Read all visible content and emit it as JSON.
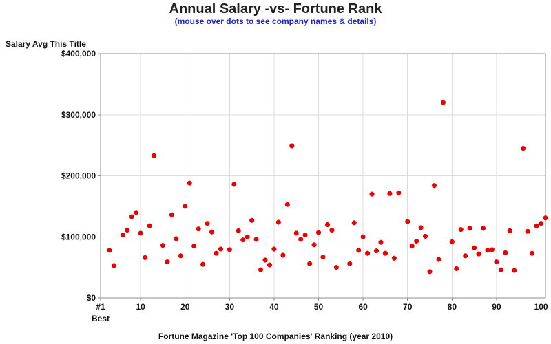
{
  "chart_data": {
    "type": "scatter",
    "title": "Annual Salary -vs- Fortune Rank",
    "subtitle": "(mouse over dots to see company names & details)",
    "xlabel": "Fortune Magazine 'Top 100 Companies' Ranking (year 2010)",
    "ylabel": "Salary Avg This Title",
    "xlim": [
      1,
      101
    ],
    "ylim": [
      0,
      400000
    ],
    "x_ticks": [
      {
        "value": 1,
        "label": "#1"
      },
      {
        "value": 10,
        "label": "10"
      },
      {
        "value": 20,
        "label": "20"
      },
      {
        "value": 30,
        "label": "30"
      },
      {
        "value": 40,
        "label": "40"
      },
      {
        "value": 50,
        "label": "50"
      },
      {
        "value": 60,
        "label": "60"
      },
      {
        "value": 70,
        "label": "70"
      },
      {
        "value": 80,
        "label": "80"
      },
      {
        "value": 90,
        "label": "90"
      },
      {
        "value": 100,
        "label": "100"
      }
    ],
    "x_tick_sublabel": "Best",
    "y_ticks": [
      {
        "value": 0,
        "label": "$0"
      },
      {
        "value": 100000,
        "label": "$100,000"
      },
      {
        "value": 200000,
        "label": "$200,000"
      },
      {
        "value": 300000,
        "label": "$300,000"
      },
      {
        "value": 400000,
        "label": "$400,000"
      }
    ],
    "grid": true,
    "marker_color": "#ee0000",
    "points": [
      {
        "x": 3,
        "y": 78000
      },
      {
        "x": 4,
        "y": 53000
      },
      {
        "x": 6,
        "y": 103000
      },
      {
        "x": 7,
        "y": 111000
      },
      {
        "x": 8,
        "y": 133000
      },
      {
        "x": 9,
        "y": 140000
      },
      {
        "x": 10,
        "y": 106000
      },
      {
        "x": 11,
        "y": 66000
      },
      {
        "x": 12,
        "y": 118000
      },
      {
        "x": 13,
        "y": 233000
      },
      {
        "x": 15,
        "y": 86000
      },
      {
        "x": 16,
        "y": 59000
      },
      {
        "x": 17,
        "y": 136000
      },
      {
        "x": 18,
        "y": 97000
      },
      {
        "x": 19,
        "y": 69000
      },
      {
        "x": 20,
        "y": 150000
      },
      {
        "x": 21,
        "y": 188000
      },
      {
        "x": 22,
        "y": 85000
      },
      {
        "x": 23,
        "y": 113000
      },
      {
        "x": 24,
        "y": 55000
      },
      {
        "x": 25,
        "y": 122000
      },
      {
        "x": 26,
        "y": 108000
      },
      {
        "x": 27,
        "y": 73000
      },
      {
        "x": 28,
        "y": 80000
      },
      {
        "x": 30,
        "y": 79000
      },
      {
        "x": 31,
        "y": 186000
      },
      {
        "x": 32,
        "y": 110000
      },
      {
        "x": 33,
        "y": 95000
      },
      {
        "x": 34,
        "y": 100000
      },
      {
        "x": 35,
        "y": 127000
      },
      {
        "x": 36,
        "y": 96000
      },
      {
        "x": 37,
        "y": 46000
      },
      {
        "x": 38,
        "y": 62000
      },
      {
        "x": 39,
        "y": 54000
      },
      {
        "x": 40,
        "y": 80000
      },
      {
        "x": 41,
        "y": 124000
      },
      {
        "x": 42,
        "y": 70000
      },
      {
        "x": 43,
        "y": 153000
      },
      {
        "x": 44,
        "y": 249000
      },
      {
        "x": 45,
        "y": 106000
      },
      {
        "x": 46,
        "y": 96000
      },
      {
        "x": 47,
        "y": 103000
      },
      {
        "x": 48,
        "y": 56000
      },
      {
        "x": 49,
        "y": 87000
      },
      {
        "x": 50,
        "y": 107000
      },
      {
        "x": 51,
        "y": 67000
      },
      {
        "x": 52,
        "y": 120000
      },
      {
        "x": 53,
        "y": 111000
      },
      {
        "x": 54,
        "y": 50000
      },
      {
        "x": 57,
        "y": 56000
      },
      {
        "x": 58,
        "y": 123000
      },
      {
        "x": 59,
        "y": 78000
      },
      {
        "x": 60,
        "y": 100000
      },
      {
        "x": 61,
        "y": 73000
      },
      {
        "x": 62,
        "y": 170000
      },
      {
        "x": 63,
        "y": 77000
      },
      {
        "x": 64,
        "y": 91000
      },
      {
        "x": 65,
        "y": 73000
      },
      {
        "x": 66,
        "y": 171000
      },
      {
        "x": 67,
        "y": 65000
      },
      {
        "x": 68,
        "y": 172000
      },
      {
        "x": 70,
        "y": 125000
      },
      {
        "x": 71,
        "y": 85000
      },
      {
        "x": 72,
        "y": 93000
      },
      {
        "x": 73,
        "y": 115000
      },
      {
        "x": 74,
        "y": 101000
      },
      {
        "x": 75,
        "y": 43000
      },
      {
        "x": 76,
        "y": 184000
      },
      {
        "x": 77,
        "y": 63000
      },
      {
        "x": 78,
        "y": 320000
      },
      {
        "x": 80,
        "y": 92000
      },
      {
        "x": 81,
        "y": 48000
      },
      {
        "x": 82,
        "y": 112000
      },
      {
        "x": 83,
        "y": 69000
      },
      {
        "x": 84,
        "y": 114000
      },
      {
        "x": 85,
        "y": 82000
      },
      {
        "x": 86,
        "y": 72000
      },
      {
        "x": 87,
        "y": 114000
      },
      {
        "x": 88,
        "y": 78000
      },
      {
        "x": 89,
        "y": 79000
      },
      {
        "x": 90,
        "y": 59000
      },
      {
        "x": 91,
        "y": 46000
      },
      {
        "x": 92,
        "y": 74000
      },
      {
        "x": 93,
        "y": 110000
      },
      {
        "x": 94,
        "y": 45000
      },
      {
        "x": 96,
        "y": 245000
      },
      {
        "x": 97,
        "y": 109000
      },
      {
        "x": 98,
        "y": 73000
      },
      {
        "x": 99,
        "y": 118000
      },
      {
        "x": 100,
        "y": 122000
      },
      {
        "x": 101,
        "y": 131000
      }
    ]
  }
}
